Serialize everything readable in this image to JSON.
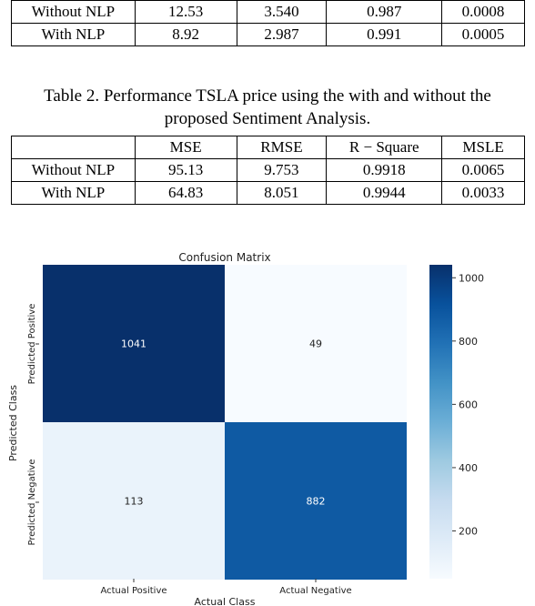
{
  "table1": {
    "rows": [
      [
        "Without NLP",
        "12.53",
        "3.540",
        "0.987",
        "0.0008"
      ],
      [
        "With NLP",
        "8.92",
        "2.987",
        "0.991",
        "0.0005"
      ]
    ]
  },
  "table2": {
    "caption_line1": "Table 2. Performance TSLA price using the with and without the",
    "caption_line2": "proposed Sentiment Analysis.",
    "headers": [
      "",
      "MSE",
      "RMSE",
      "R − Square",
      "MSLE"
    ],
    "rows": [
      [
        "Without NLP",
        "95.13",
        "9.753",
        "0.9918",
        "0.0065"
      ],
      [
        "With NLP",
        "64.83",
        "8.051",
        "0.9944",
        "0.0033"
      ]
    ]
  },
  "chart_data": {
    "type": "heatmap",
    "title": "Confusion Matrix",
    "xlabel": "Actual Class",
    "ylabel": "Predicted Class",
    "x_categories": [
      "Actual Positive",
      "Actual Negative"
    ],
    "y_categories": [
      "Predicted Positive",
      "Predicted Negative"
    ],
    "values": [
      [
        1041,
        49
      ],
      [
        113,
        882
      ]
    ],
    "colormap": "Blues",
    "colorbar_range": [
      49,
      1041
    ],
    "colorbar_ticks": [
      200,
      400,
      600,
      800,
      1000
    ]
  }
}
